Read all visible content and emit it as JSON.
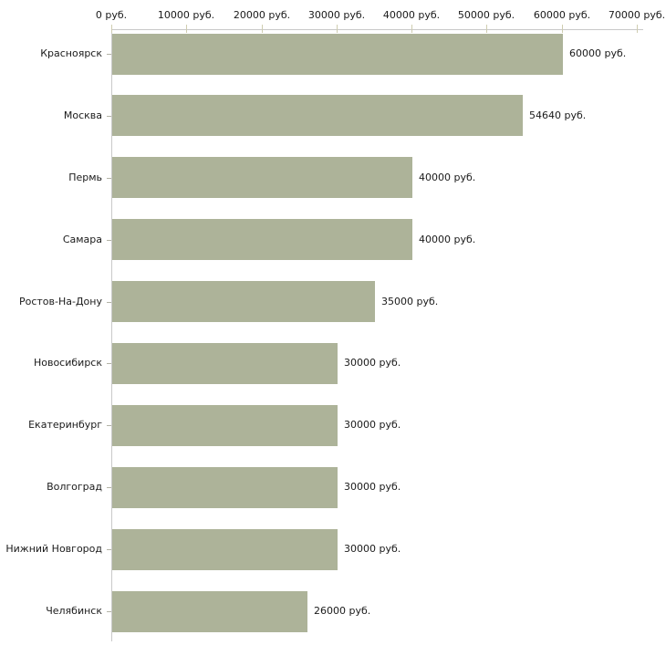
{
  "chart_data": {
    "type": "bar",
    "orientation": "horizontal",
    "title": "",
    "unit": "руб.",
    "categories": [
      "Красноярск",
      "Москва",
      "Пермь",
      "Самара",
      "Ростов-На-Дону",
      "Новосибирск",
      "Екатеринбург",
      "Волгоград",
      "Нижний Новгород",
      "Челябинск"
    ],
    "values": [
      60000,
      54640,
      40000,
      40000,
      35000,
      30000,
      30000,
      30000,
      30000,
      26000
    ],
    "value_labels": [
      "60000 руб.",
      "54640 руб.",
      "40000 руб.",
      "40000 руб.",
      "35000 руб.",
      "30000 руб.",
      "30000 руб.",
      "30000 руб.",
      "30000 руб.",
      "26000 руб."
    ],
    "x_ticks": [
      0,
      10000,
      20000,
      30000,
      40000,
      50000,
      60000,
      70000
    ],
    "x_tick_labels": [
      "0 руб.",
      "10000 руб.",
      "20000 руб.",
      "30000 руб.",
      "40000 руб.",
      "50000 руб.",
      "60000 руб.",
      "70000 руб."
    ],
    "xlim": [
      0,
      70000
    ],
    "grid": "off",
    "legend": "none",
    "colors": {
      "bar": "#adb399",
      "axis": "#c9c9c9",
      "x_tick": "#cfcdb0",
      "category_tick": "#b3b3a6",
      "text": "#1a1a1a",
      "background": "#ffffff"
    }
  }
}
